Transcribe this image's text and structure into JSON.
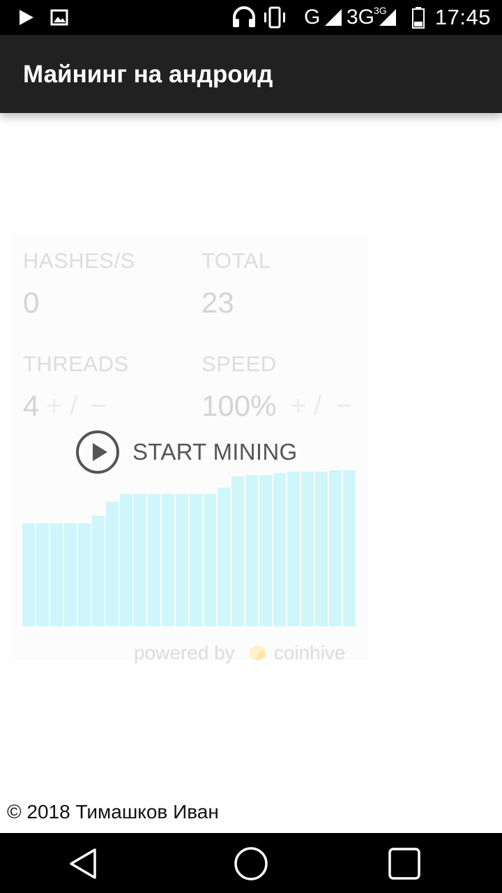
{
  "status_bar": {
    "time": "17:45",
    "network_g": "G",
    "network_3g": "3G",
    "network_3g_super": "3G",
    "icons": [
      "play-icon",
      "image-icon",
      "headphones-icon",
      "vibrate-icon",
      "signal-icon",
      "battery-icon"
    ]
  },
  "app_bar": {
    "title": "Майнинг на андроид"
  },
  "miner": {
    "hashes_label": "HASHES/S",
    "hashes_value": "0",
    "total_label": "TOTAL",
    "total_value": "23",
    "threads_label": "THREADS",
    "threads_value": "4",
    "threads_plus": "+",
    "threads_sep": "/",
    "threads_minus": "−",
    "speed_label": "SPEED",
    "speed_value": "100%",
    "speed_plus": "+",
    "speed_sep": "/",
    "speed_minus": "−",
    "start_label": "START MINING",
    "powered_by": "powered by",
    "brand": "coinhive",
    "graph_levels": [
      0.66,
      0.66,
      0.66,
      0.66,
      0.66,
      0.71,
      0.8,
      0.85,
      0.85,
      0.85,
      0.85,
      0.85,
      0.85,
      0.85,
      0.89,
      0.96,
      0.97,
      0.97,
      0.98,
      0.99,
      0.99,
      0.99,
      1.0,
      1.0
    ],
    "bar_color": "#cff6fa"
  },
  "footer": {
    "copyright": "© 2018 Тимашков Иван"
  },
  "nav_bar": {
    "icons": [
      "back-icon",
      "home-icon",
      "recents-icon"
    ]
  }
}
